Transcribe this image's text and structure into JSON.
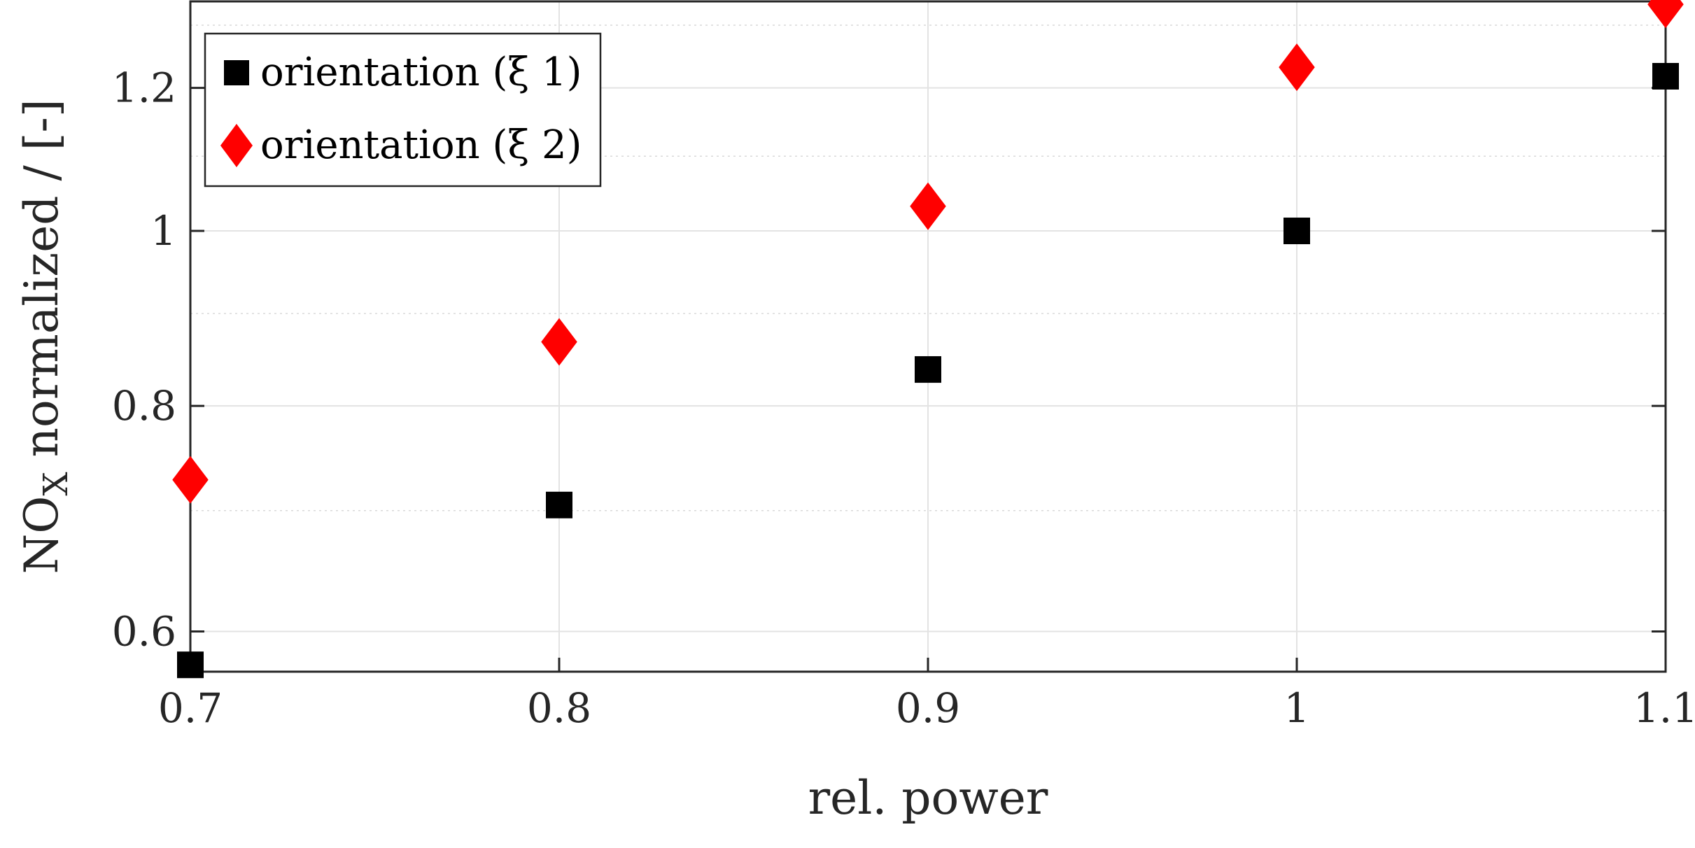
{
  "chart_data": {
    "type": "scatter",
    "xlabel": "rel. power",
    "ylabel": {
      "base": "NO",
      "sub": "X",
      "rest": " normalized / [-]"
    },
    "xlim": [
      0.7,
      1.1
    ],
    "ylim": [
      0.57,
      1.34
    ],
    "y_scale": "log",
    "x_ticks": [
      0.7,
      0.8,
      0.9,
      1.0,
      1.1
    ],
    "x_tick_labels": [
      "0.7",
      "0.8",
      "0.9",
      "1",
      "1.1"
    ],
    "y_ticks": [
      0.6,
      0.8,
      1.0,
      1.2
    ],
    "y_tick_labels": [
      "0.6",
      "0.8",
      "1",
      "1.2"
    ],
    "minor_y_ticks": [
      0.7,
      0.9,
      1.1,
      1.3
    ],
    "grid": true,
    "legend_position": "top-left",
    "series": [
      {
        "name": "orientation (ξ 1)",
        "marker": "square",
        "color": "#000000",
        "x": [
          0.7,
          0.8,
          0.9,
          1.0,
          1.1
        ],
        "y": [
          0.575,
          0.705,
          0.838,
          1.0,
          1.218
        ]
      },
      {
        "name": "orientation (ξ 2)",
        "marker": "diamond",
        "color": "#ff0000",
        "x": [
          0.7,
          0.8,
          0.9,
          1.0,
          1.1
        ],
        "y": [
          0.728,
          0.868,
          1.032,
          1.232,
          1.335
        ]
      }
    ]
  }
}
